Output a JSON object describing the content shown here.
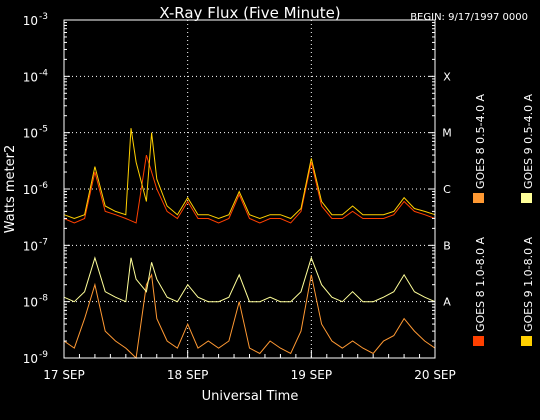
{
  "chart_data": {
    "type": "line",
    "title": "X-Ray Flux (Five Minute)",
    "begin_label": "BEGIN: 9/17/1997 0000",
    "ylabel": "Watts meter2",
    "xlabel": "Universal Time",
    "ylim": [
      1e-09,
      0.001
    ],
    "yscale": "log",
    "grid": true,
    "y_ticks": [
      {
        "base": "10",
        "exp": "-9"
      },
      {
        "base": "10",
        "exp": "-8"
      },
      {
        "base": "10",
        "exp": "-7"
      },
      {
        "base": "10",
        "exp": "-6"
      },
      {
        "base": "10",
        "exp": "-5"
      },
      {
        "base": "10",
        "exp": "-4"
      },
      {
        "base": "10",
        "exp": "-3"
      }
    ],
    "x_ticks": [
      "17 SEP",
      "18 SEP",
      "19 SEP",
      "20 SEP"
    ],
    "flare_classes": [
      {
        "label": "A",
        "flux": 1e-08
      },
      {
        "label": "B",
        "flux": 1e-07
      },
      {
        "label": "C",
        "flux": 1e-06
      },
      {
        "label": "M",
        "flux": 1e-05
      },
      {
        "label": "X",
        "flux": 0.0001
      }
    ],
    "x_unit": "hours since 1997-09-17 00:00 UT",
    "xlim": [
      0,
      72
    ],
    "series": [
      {
        "name": "GOES 8 1.0-8.0 A",
        "color": "#ff4000",
        "x": [
          0,
          2,
          4,
          6,
          8,
          10,
          12,
          14,
          16,
          18,
          20,
          22,
          24,
          26,
          28,
          30,
          32,
          34,
          36,
          38,
          40,
          42,
          44,
          46,
          48,
          50,
          52,
          54,
          56,
          58,
          60,
          62,
          64,
          66,
          68,
          70,
          72
        ],
        "y": [
          3e-07,
          2.5e-07,
          3e-07,
          2e-06,
          4e-07,
          3.5e-07,
          3e-07,
          2.5e-07,
          4e-06,
          1e-06,
          4e-07,
          3e-07,
          6e-07,
          3e-07,
          3e-07,
          2.5e-07,
          3e-07,
          8e-07,
          3e-07,
          2.5e-07,
          3e-07,
          3e-07,
          2.5e-07,
          4e-07,
          3e-06,
          5e-07,
          3e-07,
          3e-07,
          4e-07,
          3e-07,
          3e-07,
          3e-07,
          3.5e-07,
          6e-07,
          4e-07,
          3.5e-07,
          3e-07
        ]
      },
      {
        "name": "GOES 9 1.0-8.0 A",
        "color": "#ffd000",
        "x": [
          0,
          2,
          4,
          6,
          8,
          10,
          12,
          13,
          14,
          16,
          17,
          18,
          20,
          22,
          24,
          26,
          28,
          30,
          32,
          34,
          36,
          38,
          40,
          42,
          44,
          46,
          48,
          50,
          52,
          54,
          56,
          58,
          60,
          62,
          64,
          66,
          68,
          70,
          72
        ],
        "y": [
          3.5e-07,
          3e-07,
          3.5e-07,
          2.5e-06,
          5e-07,
          4e-07,
          3.5e-07,
          1.2e-05,
          3e-06,
          6e-07,
          1e-05,
          1.5e-06,
          5e-07,
          3.5e-07,
          7e-07,
          3.5e-07,
          3.5e-07,
          3e-07,
          3.5e-07,
          9e-07,
          3.5e-07,
          3e-07,
          3.5e-07,
          3.5e-07,
          3e-07,
          4.5e-07,
          3.5e-06,
          6e-07,
          3.5e-07,
          3.5e-07,
          5e-07,
          3.5e-07,
          3.5e-07,
          3.5e-07,
          4e-07,
          7e-07,
          4.5e-07,
          4e-07,
          3.5e-07
        ]
      },
      {
        "name": "GOES 8 0.5-4.0 A",
        "color": "#ff9933",
        "x": [
          0,
          2,
          4,
          6,
          8,
          10,
          12,
          14,
          16,
          17,
          18,
          20,
          22,
          24,
          26,
          28,
          30,
          32,
          34,
          36,
          38,
          40,
          42,
          44,
          46,
          48,
          50,
          52,
          54,
          56,
          58,
          60,
          62,
          64,
          66,
          68,
          70,
          72
        ],
        "y": [
          2e-09,
          1.5e-09,
          5e-09,
          2e-08,
          3e-09,
          2e-09,
          1.5e-09,
          1e-09,
          2e-08,
          3e-08,
          5e-09,
          2e-09,
          1.5e-09,
          4e-09,
          1.5e-09,
          2e-09,
          1.5e-09,
          2e-09,
          1e-08,
          1.5e-09,
          1.2e-09,
          2e-09,
          1.5e-09,
          1.2e-09,
          3e-09,
          3e-08,
          4e-09,
          2e-09,
          1.5e-09,
          2e-09,
          1.5e-09,
          1.2e-09,
          2e-09,
          2.5e-09,
          5e-09,
          3e-09,
          2e-09,
          1.5e-09
        ]
      },
      {
        "name": "GOES 9 0.5-4.0 A",
        "color": "#ffff99",
        "x": [
          0,
          2,
          4,
          6,
          8,
          10,
          12,
          13,
          14,
          16,
          17,
          18,
          20,
          22,
          24,
          26,
          28,
          30,
          32,
          34,
          36,
          38,
          40,
          42,
          44,
          46,
          48,
          50,
          52,
          54,
          56,
          58,
          60,
          62,
          64,
          66,
          68,
          70,
          72
        ],
        "y": [
          1.2e-08,
          1e-08,
          1.5e-08,
          6e-08,
          1.5e-08,
          1.2e-08,
          1e-08,
          6e-08,
          2.5e-08,
          1.5e-08,
          5e-08,
          2.5e-08,
          1.2e-08,
          1e-08,
          2e-08,
          1.2e-08,
          1e-08,
          1e-08,
          1.2e-08,
          3e-08,
          1e-08,
          1e-08,
          1.2e-08,
          1e-08,
          1e-08,
          1.5e-08,
          6e-08,
          2e-08,
          1.2e-08,
          1e-08,
          1.5e-08,
          1e-08,
          1e-08,
          1.2e-08,
          1.5e-08,
          3e-08,
          1.5e-08,
          1.2e-08,
          1e-08
        ]
      }
    ]
  }
}
